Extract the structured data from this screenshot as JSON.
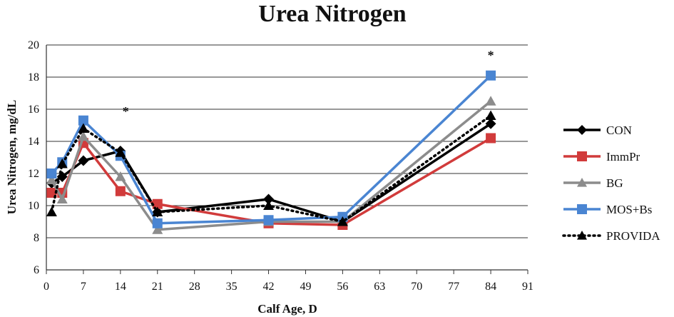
{
  "chart_data": {
    "type": "line",
    "title": "Urea Nitrogen",
    "xlabel": "Calf Age, D",
    "ylabel": "Urea Nitrogen, mg/dL",
    "xlim": [
      0,
      91
    ],
    "ylim": [
      6,
      20
    ],
    "xticks": [
      0,
      7,
      14,
      21,
      28,
      35,
      42,
      49,
      56,
      63,
      70,
      77,
      84,
      91
    ],
    "yticks": [
      6,
      8,
      10,
      12,
      14,
      16,
      18,
      20
    ],
    "grid": "horizontal",
    "legend_position": "right",
    "annotations": [
      {
        "text": "*",
        "x": 15,
        "y": 15.6
      },
      {
        "text": "*",
        "x": 84,
        "y": 19.1
      }
    ],
    "series": [
      {
        "name": "CON",
        "color": "#000000",
        "marker": "diamond",
        "dash": "solid",
        "x": [
          1,
          3,
          7,
          14,
          21,
          42,
          56,
          84
        ],
        "values": [
          11.4,
          11.8,
          12.8,
          13.4,
          9.6,
          10.4,
          9.0,
          15.1
        ]
      },
      {
        "name": "ImmPr",
        "color": "#d13b3b",
        "marker": "square",
        "dash": "solid",
        "x": [
          1,
          3,
          7,
          14,
          21,
          42,
          56,
          84
        ],
        "values": [
          10.8,
          10.8,
          13.9,
          10.9,
          10.1,
          8.9,
          8.8,
          14.2
        ]
      },
      {
        "name": "BG",
        "color": "#8c8c8c",
        "marker": "triangle",
        "dash": "solid",
        "x": [
          1,
          3,
          7,
          14,
          21,
          42,
          56,
          84
        ],
        "values": [
          11.6,
          10.4,
          14.3,
          11.8,
          8.5,
          9.0,
          9.0,
          16.5
        ]
      },
      {
        "name": "MOS+Bs",
        "color": "#4a85d2",
        "marker": "square",
        "dash": "solid",
        "x": [
          1,
          3,
          7,
          14,
          21,
          42,
          56,
          84
        ],
        "values": [
          12.0,
          12.7,
          15.3,
          13.1,
          8.9,
          9.1,
          9.3,
          18.1
        ]
      },
      {
        "name": "PROVIDA",
        "color": "#000000",
        "marker": "triangle",
        "dash": "dotted",
        "x": [
          1,
          3,
          7,
          14,
          21,
          42,
          56,
          84
        ],
        "values": [
          9.6,
          12.6,
          14.8,
          13.3,
          9.6,
          10.0,
          9.0,
          15.6
        ]
      }
    ]
  }
}
